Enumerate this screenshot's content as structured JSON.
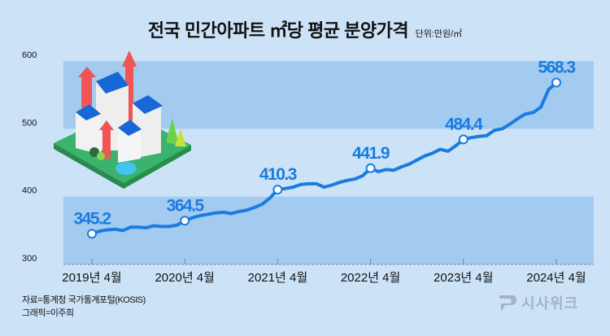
{
  "header": {
    "title": "전국 민간아파트 ㎡당 평균 분양가격",
    "unit": "단위:만원/㎡"
  },
  "footer": {
    "source": "자료=통계청 국가통계포털(KOSIS)",
    "graphic": "그래픽=이주희",
    "logo_text": "시사위크"
  },
  "colors": {
    "background": "#cce3f7",
    "band": "#a3cbf0",
    "line": "#1a7be0",
    "text": "#111111"
  },
  "chart_data": {
    "type": "line",
    "title": "전국 민간아파트 ㎡당 평균 분양가격",
    "unit": "만원/㎡",
    "xlabel": "",
    "ylabel": "",
    "ylim": [
      300,
      600
    ],
    "yticks": [
      300,
      400,
      500,
      600
    ],
    "xtick_labels": [
      "2019년 4월",
      "2020년 4월",
      "2021년 4월",
      "2022년 4월",
      "2023년 4월",
      "2024년 4월"
    ],
    "grid": false,
    "legend": null,
    "annotated_points": [
      {
        "label": "2019년 4월",
        "value": 345.2
      },
      {
        "label": "2020년 4월",
        "value": 364.5
      },
      {
        "label": "2021년 4월",
        "value": 410.3
      },
      {
        "label": "2022년 4월",
        "value": 441.9
      },
      {
        "label": "2023년 4월",
        "value": 484.4
      },
      {
        "label": "2024년 4월",
        "value": 568.3
      }
    ],
    "series": [
      {
        "name": "㎡당 평균 분양가격",
        "start": "2019-04",
        "values": [
          345.2,
          349,
          351,
          352,
          350,
          355,
          355,
          354,
          357,
          356,
          356,
          358,
          364.5,
          369,
          372,
          374,
          376,
          377,
          375,
          378,
          380,
          384,
          389,
          398,
          410.3,
          412,
          414,
          418,
          419,
          419,
          414,
          417,
          421,
          424,
          426,
          431,
          441.9,
          437,
          440,
          439,
          444,
          448,
          454,
          460,
          464,
          470,
          467,
          475,
          484.4,
          487,
          489,
          490,
          498,
          500,
          507,
          515,
          522,
          524,
          532,
          558,
          568.3
        ]
      }
    ]
  }
}
